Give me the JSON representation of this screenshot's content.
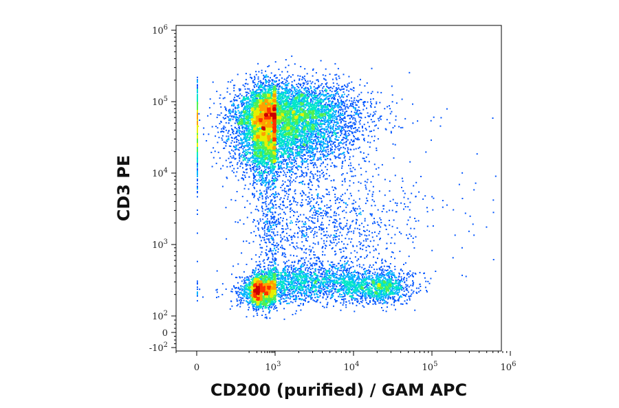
{
  "chart_data": {
    "type": "scatter",
    "subtype": "flow-cytometry-density-plot",
    "xlabel": "CD200 (purified) / GAM APC",
    "ylabel": "CD3 PE",
    "x_scale": "biexponential",
    "y_scale": "biexponential",
    "xlim": [
      -100,
      1000000
    ],
    "ylim": [
      -100,
      1000000
    ],
    "x_ticks": [
      {
        "value": 0,
        "base": "0",
        "exp": ""
      },
      {
        "value": 1000,
        "base": "10",
        "exp": "3"
      },
      {
        "value": 10000,
        "base": "10",
        "exp": "4"
      },
      {
        "value": 100000,
        "base": "10",
        "exp": "5"
      },
      {
        "value": 1000000,
        "base": "10",
        "exp": "6"
      }
    ],
    "y_ticks": [
      {
        "value": -100,
        "base": "-10",
        "exp": "2"
      },
      {
        "value": 0,
        "base": "0",
        "exp": ""
      },
      {
        "value": 100,
        "base": "10",
        "exp": "2"
      },
      {
        "value": 1000,
        "base": "10",
        "exp": "3"
      },
      {
        "value": 10000,
        "base": "10",
        "exp": "4"
      },
      {
        "value": 100000,
        "base": "10",
        "exp": "5"
      },
      {
        "value": 1000000,
        "base": "10",
        "exp": "6"
      }
    ],
    "populations": [
      {
        "center": [
          800,
          55000
        ],
        "spread_x": [
          1.25,
          0.9
        ],
        "spread_y": [
          0.62,
          0.42
        ],
        "weight": 0.62,
        "tilt": 0.04
      },
      {
        "center": [
          250,
          230
        ],
        "spread_x": [
          0.45,
          0.8
        ],
        "spread_y": [
          0.2,
          0.18
        ],
        "weight": 0.14,
        "tilt": 0
      },
      {
        "center": [
          2500,
          320
        ],
        "spread_x": [
          0.9,
          0.9
        ],
        "spread_y": [
          0.22,
          0.22
        ],
        "weight": 0.1,
        "tilt": 0
      },
      {
        "center": [
          20000,
          260
        ],
        "spread_x": [
          0.5,
          0.32
        ],
        "spread_y": [
          0.2,
          0.18
        ],
        "weight": 0.07,
        "tilt": 0
      },
      {
        "center": [
          3000,
          2000
        ],
        "spread_x": [
          1.1,
          1.1
        ],
        "spread_y": [
          0.55,
          0.55
        ],
        "weight": 0.07,
        "tilt": 0
      }
    ],
    "colormap": [
      "#0000cc",
      "#0055ff",
      "#00b4ff",
      "#00e6c8",
      "#50f050",
      "#e6f000",
      "#ffa000",
      "#ff3000",
      "#cc0000"
    ],
    "grid": false,
    "legend": "none"
  }
}
